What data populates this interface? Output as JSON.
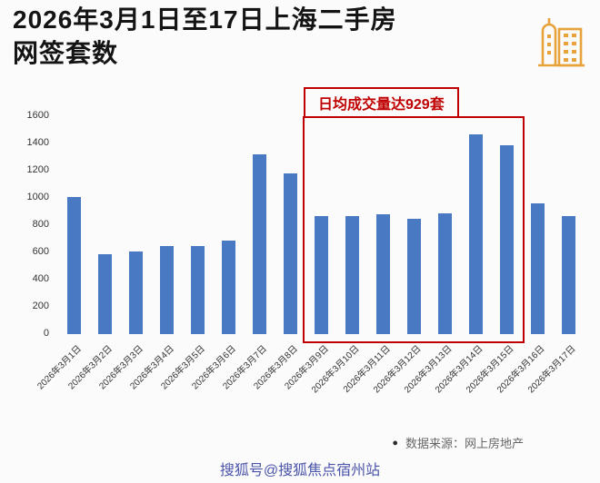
{
  "header": {
    "title_line1": "2026年3月1日至17日上海二手房",
    "title_line2": "网签套数",
    "icon_color": "#E8A23C"
  },
  "chart_data": {
    "type": "bar",
    "title": "2026年3月1日至17日上海二手房网签套数",
    "categories": [
      "2026年3月1日",
      "2026年3月2日",
      "2026年3月3日",
      "2026年3月4日",
      "2026年3月5日",
      "2026年3月6日",
      "2026年3月7日",
      "2026年3月8日",
      "2026年3月9日",
      "2026年3月10日",
      "2026年3月11日",
      "2026年3月12日",
      "2026年3月13日",
      "2026年3月14日",
      "2026年3月15日",
      "2026年3月16日",
      "2026年3月17日"
    ],
    "values": [
      1010,
      590,
      610,
      650,
      650,
      690,
      1320,
      1180,
      870,
      870,
      880,
      850,
      890,
      1470,
      1390,
      960,
      870
    ],
    "xlabel": "",
    "ylabel": "",
    "ylim": [
      0,
      1600
    ],
    "yticks": [
      0,
      200,
      400,
      600,
      800,
      1000,
      1200,
      1400,
      1600
    ],
    "grid": false,
    "legend": false,
    "bar_color": "#4879C2",
    "highlight": {
      "label": "日均成交量达929套",
      "color": "#c00000",
      "start_index": 8,
      "end_index": 14,
      "start_category": "2026年3月9日",
      "end_category": "2026年3月15日"
    }
  },
  "footer": {
    "bullet": "●",
    "source_label": "数据来源：网上房地产"
  },
  "watermark": {
    "text": "搜狐号@搜狐焦点宿州站",
    "color": "#4B55A9"
  }
}
